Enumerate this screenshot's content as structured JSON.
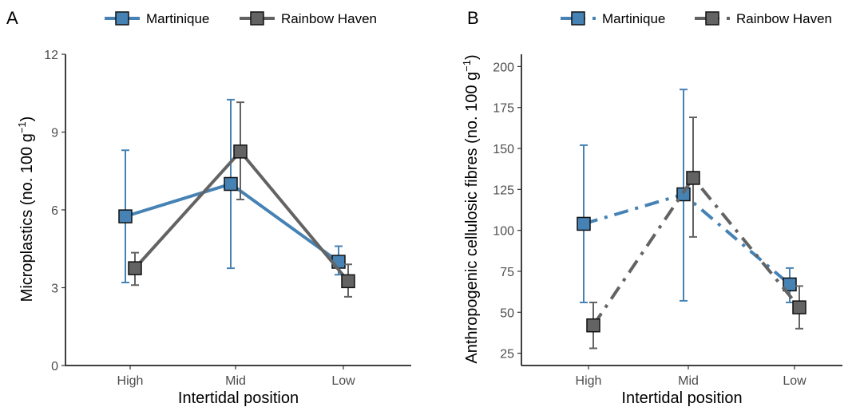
{
  "colors": {
    "martinique": "#4682b4",
    "rainbow_haven": "#636363",
    "axis": "#000000",
    "tick_text": "#4d4d4d"
  },
  "chart_data": [
    {
      "type": "line",
      "panel": "A",
      "categories": [
        "High",
        "Mid",
        "Low"
      ],
      "xlabel": "Intertidal position",
      "ylabel": "Microplastics (no. 100 g",
      "ylabel_sup": "−1",
      "ylabel_close": ")",
      "ylim": [
        0,
        12
      ],
      "yticks": [
        0,
        3,
        6,
        9,
        12
      ],
      "grid": false,
      "legend_position": "top",
      "series": [
        {
          "name": "Martinique",
          "values": [
            5.75,
            7.0,
            4.0
          ],
          "err_low": [
            3.2,
            3.75,
            3.5
          ],
          "err_high": [
            8.3,
            10.25,
            4.6
          ],
          "line_style": "solid"
        },
        {
          "name": "Rainbow Haven",
          "values": [
            3.75,
            8.25,
            3.25
          ],
          "err_low": [
            3.1,
            6.4,
            2.65
          ],
          "err_high": [
            4.35,
            10.15,
            3.9
          ],
          "line_style": "solid"
        }
      ]
    },
    {
      "type": "line",
      "panel": "B",
      "categories": [
        "High",
        "Mid",
        "Low"
      ],
      "xlabel": "Intertidal position",
      "ylabel": "Anthropogenic cellulosic fibres (no. 100 g",
      "ylabel_sup": "−1",
      "ylabel_close": ")",
      "ylim": [
        17.5,
        207.5
      ],
      "yticks": [
        25,
        50,
        75,
        100,
        125,
        150,
        175,
        200
      ],
      "grid": false,
      "legend_position": "top",
      "series": [
        {
          "name": "Martinique",
          "values": [
            104,
            122,
            67
          ],
          "err_low": [
            56,
            57,
            56
          ],
          "err_high": [
            152,
            186,
            77
          ],
          "line_style": "dashdot"
        },
        {
          "name": "Rainbow Haven",
          "values": [
            42,
            132,
            53
          ],
          "err_low": [
            28,
            96,
            40
          ],
          "err_high": [
            56,
            169,
            66
          ],
          "line_style": "dashdot"
        }
      ]
    }
  ]
}
